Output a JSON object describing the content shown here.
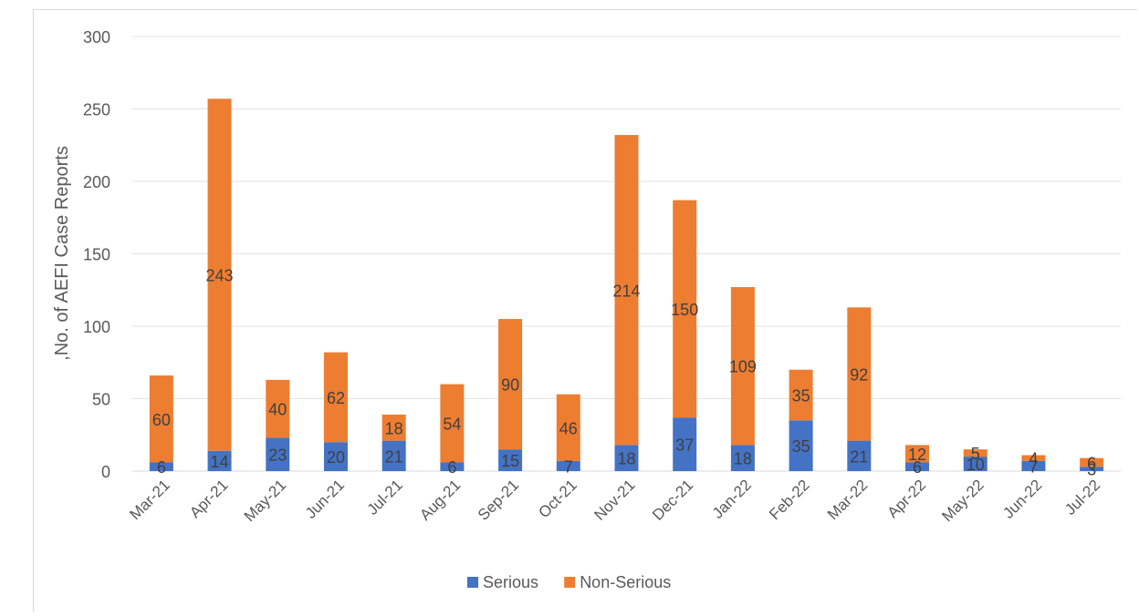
{
  "chart_data": {
    "type": "bar",
    "stacked": true,
    "title": "",
    "xlabel": "",
    "ylabel": ",No. of  AEFI Case Reports",
    "ylim": [
      0,
      300
    ],
    "yticks": [
      0,
      50,
      100,
      150,
      200,
      250,
      300
    ],
    "grid": true,
    "legend_position": "bottom",
    "categories": [
      "Mar-21",
      "Apr-21",
      "May-21",
      "Jun-21",
      "Jul-21",
      "Aug-21",
      "Sep-21",
      "Oct-21",
      "Nov-21",
      "Dec-21",
      "Jan-22",
      "Feb-22",
      "Mar-22",
      "Apr-22",
      "May-22",
      "Jun-22",
      "Jul-22"
    ],
    "series": [
      {
        "name": "Serious",
        "color": "#4472c4",
        "values": [
          6,
          14,
          23,
          20,
          21,
          6,
          15,
          7,
          18,
          37,
          18,
          35,
          21,
          6,
          10,
          7,
          3
        ]
      },
      {
        "name": "Non-Serious",
        "color": "#ed7d31",
        "values": [
          60,
          243,
          40,
          62,
          18,
          54,
          90,
          46,
          214,
          150,
          109,
          35,
          92,
          12,
          5,
          4,
          6
        ]
      }
    ]
  }
}
